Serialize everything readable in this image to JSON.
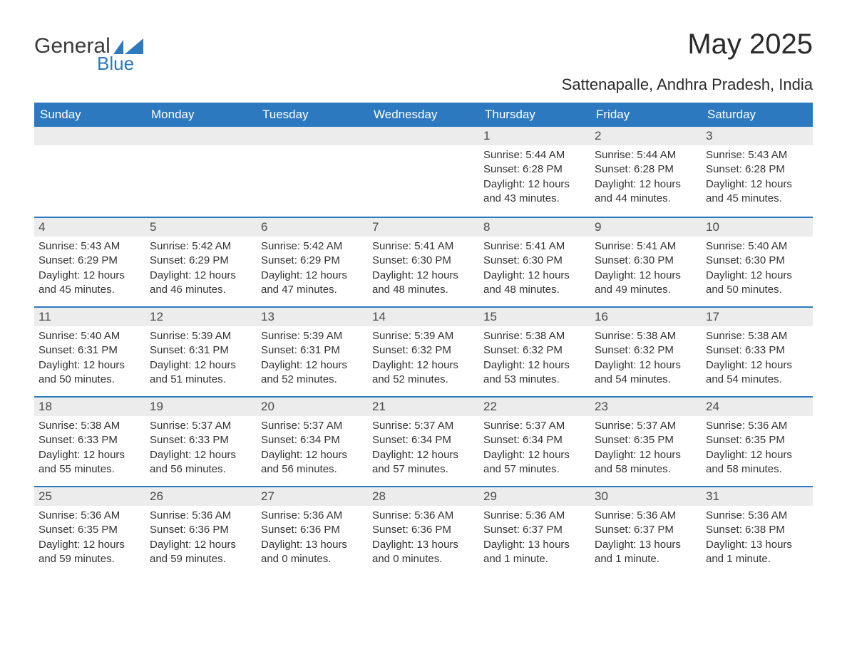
{
  "brand": {
    "name_main": "General",
    "name_sub": "Blue",
    "logo_color": "#2d79c0",
    "text_color": "#3b3b3b"
  },
  "title": "May 2025",
  "subtitle": "Sattenapalle, Andhra Pradesh, India",
  "colors": {
    "header_bg": "#2d79c0",
    "header_fg": "#ffffff",
    "daynum_bg": "#ececec",
    "daynum_border": "#2d79c0",
    "body_text": "#333333",
    "page_bg": "#ffffff"
  },
  "typography": {
    "title_fontsize": 40,
    "subtitle_fontsize": 22,
    "dow_fontsize": 17,
    "daynum_fontsize": 17,
    "body_fontsize": 15
  },
  "days_of_week": [
    "Sunday",
    "Monday",
    "Tuesday",
    "Wednesday",
    "Thursday",
    "Friday",
    "Saturday"
  ],
  "weeks": [
    [
      {
        "n": "",
        "sr": "",
        "ss": "",
        "dl": ""
      },
      {
        "n": "",
        "sr": "",
        "ss": "",
        "dl": ""
      },
      {
        "n": "",
        "sr": "",
        "ss": "",
        "dl": ""
      },
      {
        "n": "",
        "sr": "",
        "ss": "",
        "dl": ""
      },
      {
        "n": "1",
        "sr": "Sunrise: 5:44 AM",
        "ss": "Sunset: 6:28 PM",
        "dl": "Daylight: 12 hours and 43 minutes."
      },
      {
        "n": "2",
        "sr": "Sunrise: 5:44 AM",
        "ss": "Sunset: 6:28 PM",
        "dl": "Daylight: 12 hours and 44 minutes."
      },
      {
        "n": "3",
        "sr": "Sunrise: 5:43 AM",
        "ss": "Sunset: 6:28 PM",
        "dl": "Daylight: 12 hours and 45 minutes."
      }
    ],
    [
      {
        "n": "4",
        "sr": "Sunrise: 5:43 AM",
        "ss": "Sunset: 6:29 PM",
        "dl": "Daylight: 12 hours and 45 minutes."
      },
      {
        "n": "5",
        "sr": "Sunrise: 5:42 AM",
        "ss": "Sunset: 6:29 PM",
        "dl": "Daylight: 12 hours and 46 minutes."
      },
      {
        "n": "6",
        "sr": "Sunrise: 5:42 AM",
        "ss": "Sunset: 6:29 PM",
        "dl": "Daylight: 12 hours and 47 minutes."
      },
      {
        "n": "7",
        "sr": "Sunrise: 5:41 AM",
        "ss": "Sunset: 6:30 PM",
        "dl": "Daylight: 12 hours and 48 minutes."
      },
      {
        "n": "8",
        "sr": "Sunrise: 5:41 AM",
        "ss": "Sunset: 6:30 PM",
        "dl": "Daylight: 12 hours and 48 minutes."
      },
      {
        "n": "9",
        "sr": "Sunrise: 5:41 AM",
        "ss": "Sunset: 6:30 PM",
        "dl": "Daylight: 12 hours and 49 minutes."
      },
      {
        "n": "10",
        "sr": "Sunrise: 5:40 AM",
        "ss": "Sunset: 6:30 PM",
        "dl": "Daylight: 12 hours and 50 minutes."
      }
    ],
    [
      {
        "n": "11",
        "sr": "Sunrise: 5:40 AM",
        "ss": "Sunset: 6:31 PM",
        "dl": "Daylight: 12 hours and 50 minutes."
      },
      {
        "n": "12",
        "sr": "Sunrise: 5:39 AM",
        "ss": "Sunset: 6:31 PM",
        "dl": "Daylight: 12 hours and 51 minutes."
      },
      {
        "n": "13",
        "sr": "Sunrise: 5:39 AM",
        "ss": "Sunset: 6:31 PM",
        "dl": "Daylight: 12 hours and 52 minutes."
      },
      {
        "n": "14",
        "sr": "Sunrise: 5:39 AM",
        "ss": "Sunset: 6:32 PM",
        "dl": "Daylight: 12 hours and 52 minutes."
      },
      {
        "n": "15",
        "sr": "Sunrise: 5:38 AM",
        "ss": "Sunset: 6:32 PM",
        "dl": "Daylight: 12 hours and 53 minutes."
      },
      {
        "n": "16",
        "sr": "Sunrise: 5:38 AM",
        "ss": "Sunset: 6:32 PM",
        "dl": "Daylight: 12 hours and 54 minutes."
      },
      {
        "n": "17",
        "sr": "Sunrise: 5:38 AM",
        "ss": "Sunset: 6:33 PM",
        "dl": "Daylight: 12 hours and 54 minutes."
      }
    ],
    [
      {
        "n": "18",
        "sr": "Sunrise: 5:38 AM",
        "ss": "Sunset: 6:33 PM",
        "dl": "Daylight: 12 hours and 55 minutes."
      },
      {
        "n": "19",
        "sr": "Sunrise: 5:37 AM",
        "ss": "Sunset: 6:33 PM",
        "dl": "Daylight: 12 hours and 56 minutes."
      },
      {
        "n": "20",
        "sr": "Sunrise: 5:37 AM",
        "ss": "Sunset: 6:34 PM",
        "dl": "Daylight: 12 hours and 56 minutes."
      },
      {
        "n": "21",
        "sr": "Sunrise: 5:37 AM",
        "ss": "Sunset: 6:34 PM",
        "dl": "Daylight: 12 hours and 57 minutes."
      },
      {
        "n": "22",
        "sr": "Sunrise: 5:37 AM",
        "ss": "Sunset: 6:34 PM",
        "dl": "Daylight: 12 hours and 57 minutes."
      },
      {
        "n": "23",
        "sr": "Sunrise: 5:37 AM",
        "ss": "Sunset: 6:35 PM",
        "dl": "Daylight: 12 hours and 58 minutes."
      },
      {
        "n": "24",
        "sr": "Sunrise: 5:36 AM",
        "ss": "Sunset: 6:35 PM",
        "dl": "Daylight: 12 hours and 58 minutes."
      }
    ],
    [
      {
        "n": "25",
        "sr": "Sunrise: 5:36 AM",
        "ss": "Sunset: 6:35 PM",
        "dl": "Daylight: 12 hours and 59 minutes."
      },
      {
        "n": "26",
        "sr": "Sunrise: 5:36 AM",
        "ss": "Sunset: 6:36 PM",
        "dl": "Daylight: 12 hours and 59 minutes."
      },
      {
        "n": "27",
        "sr": "Sunrise: 5:36 AM",
        "ss": "Sunset: 6:36 PM",
        "dl": "Daylight: 13 hours and 0 minutes."
      },
      {
        "n": "28",
        "sr": "Sunrise: 5:36 AM",
        "ss": "Sunset: 6:36 PM",
        "dl": "Daylight: 13 hours and 0 minutes."
      },
      {
        "n": "29",
        "sr": "Sunrise: 5:36 AM",
        "ss": "Sunset: 6:37 PM",
        "dl": "Daylight: 13 hours and 1 minute."
      },
      {
        "n": "30",
        "sr": "Sunrise: 5:36 AM",
        "ss": "Sunset: 6:37 PM",
        "dl": "Daylight: 13 hours and 1 minute."
      },
      {
        "n": "31",
        "sr": "Sunrise: 5:36 AM",
        "ss": "Sunset: 6:38 PM",
        "dl": "Daylight: 13 hours and 1 minute."
      }
    ]
  ]
}
